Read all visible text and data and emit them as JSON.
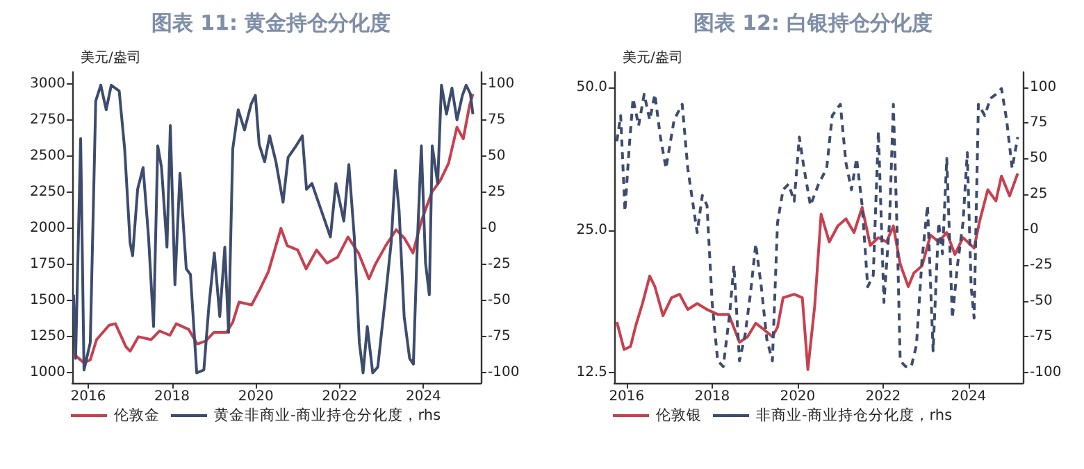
{
  "chart_data": [
    {
      "type": "line",
      "title": "图表 11: 黄金持仓分化度",
      "annotations": [
        "美元/盎司"
      ],
      "xlim": [
        2015.62,
        2025.37
      ],
      "xticks": [
        2016,
        2018,
        2020,
        2022,
        2024
      ],
      "ylim": [
        930,
        3081
      ],
      "yticks": [
        1000,
        1250,
        1500,
        1750,
        2000,
        2250,
        2500,
        2750,
        3000
      ],
      "y2lim": [
        -107,
        108
      ],
      "y2ticks": [
        -100,
        -75,
        -50,
        -25,
        0,
        25,
        50,
        75,
        100
      ],
      "legend": "bottom left",
      "marker": "none",
      "series": [
        {
          "name": "伦敦金",
          "color": "#c8404f",
          "x": [
            2015.65,
            2015.9,
            2016.05,
            2016.2,
            2016.5,
            2016.65,
            2016.9,
            2017.0,
            2017.2,
            2017.5,
            2017.7,
            2017.95,
            2018.1,
            2018.4,
            2018.6,
            2018.8,
            2019.0,
            2019.3,
            2019.45,
            2019.6,
            2019.9,
            2020.1,
            2020.3,
            2020.6,
            2020.75,
            2021.0,
            2021.2,
            2021.45,
            2021.7,
            2021.95,
            2022.2,
            2022.45,
            2022.7,
            2022.85,
            2023.1,
            2023.35,
            2023.55,
            2023.75,
            2023.95,
            2024.2,
            2024.4,
            2024.6,
            2024.8,
            2024.95,
            2025.1,
            2025.18
          ],
          "values": [
            1130,
            1070,
            1090,
            1230,
            1330,
            1340,
            1180,
            1150,
            1250,
            1230,
            1290,
            1260,
            1340,
            1300,
            1200,
            1220,
            1280,
            1280,
            1350,
            1490,
            1470,
            1580,
            1700,
            2000,
            1880,
            1850,
            1720,
            1850,
            1760,
            1800,
            1940,
            1830,
            1650,
            1750,
            1880,
            1990,
            1930,
            1830,
            2050,
            2250,
            2330,
            2450,
            2700,
            2620,
            2850,
            2930
          ]
        },
        {
          "name": "黄金非商业-商业持仓分化度，rhs",
          "color": "#3d4c6e",
          "axis": "y2",
          "x": [
            2015.65,
            2015.7,
            2015.82,
            2015.9,
            2016.05,
            2016.18,
            2016.3,
            2016.43,
            2016.55,
            2016.74,
            2016.87,
            2017.0,
            2017.06,
            2017.18,
            2017.31,
            2017.44,
            2017.56,
            2017.66,
            2017.75,
            2017.88,
            2017.96,
            2018.07,
            2018.19,
            2018.34,
            2018.44,
            2018.59,
            2018.76,
            2018.88,
            2019.01,
            2019.14,
            2019.26,
            2019.35,
            2019.45,
            2019.58,
            2019.73,
            2019.89,
            2019.99,
            2020.08,
            2020.21,
            2020.33,
            2020.48,
            2020.65,
            2020.77,
            2020.96,
            2021.11,
            2021.21,
            2021.34,
            2021.47,
            2021.65,
            2021.78,
            2021.91,
            2022.1,
            2022.22,
            2022.35,
            2022.47,
            2022.56,
            2022.66,
            2022.79,
            2022.91,
            2023.1,
            2023.23,
            2023.33,
            2023.42,
            2023.54,
            2023.67,
            2023.76,
            2023.86,
            2023.95,
            2024.05,
            2024.14,
            2024.21,
            2024.34,
            2024.43,
            2024.55,
            2024.68,
            2024.8,
            2024.93,
            2025.02,
            2025.12,
            2025.18
          ],
          "values": [
            -46,
            -90,
            62,
            -98,
            -79,
            88,
            99,
            82,
            99,
            95,
            55,
            -10,
            -19,
            27,
            42,
            -6,
            -68,
            57,
            42,
            -13,
            71,
            -39,
            38,
            -28,
            -32,
            -100,
            -98,
            -54,
            -17,
            -61,
            -13,
            -72,
            55,
            82,
            68,
            86,
            92,
            58,
            46,
            64,
            46,
            18,
            49,
            57,
            64,
            27,
            31,
            20,
            5,
            -6,
            31,
            5,
            44,
            -6,
            -79,
            -100,
            -68,
            -100,
            -96,
            -46,
            -10,
            40,
            12,
            -61,
            -90,
            -94,
            -6,
            57,
            -24,
            -46,
            57,
            31,
            99,
            79,
            97,
            75,
            92,
            99,
            93,
            79
          ]
        }
      ]
    },
    {
      "type": "line",
      "title": "图表 12: 白银持仓分化度",
      "annotations": [
        "美元/盎司"
      ],
      "log": "y",
      "xlim": [
        2015.71,
        2025.27
      ],
      "xticks": [
        2016,
        2018,
        2020,
        2022,
        2024
      ],
      "ylim": [
        11.9,
        53.8
      ],
      "yticks": [
        {
          "value": 12.5,
          "label": "12.5"
        },
        {
          "value": 25,
          "label": "25.0"
        },
        {
          "value": 50,
          "label": "50.0"
        }
      ],
      "y2lim": [
        -107.5,
        110.5
      ],
      "y2ticks": [
        -100,
        -75,
        -50,
        -25,
        0,
        25,
        50,
        75,
        100
      ],
      "legend": "bottom left",
      "marker": "none",
      "series": [
        {
          "name": "伦敦银",
          "color": "#c8404f",
          "x": [
            2015.77,
            2015.94,
            2016.09,
            2016.22,
            2016.37,
            2016.54,
            2016.66,
            2016.85,
            2017.05,
            2017.24,
            2017.43,
            2017.65,
            2017.88,
            2018.13,
            2018.39,
            2018.64,
            2018.83,
            2019.02,
            2019.22,
            2019.41,
            2019.53,
            2019.66,
            2019.92,
            2020.11,
            2020.24,
            2020.4,
            2020.55,
            2020.74,
            2020.94,
            2021.13,
            2021.32,
            2021.51,
            2021.7,
            2021.89,
            2022.08,
            2022.24,
            2022.4,
            2022.59,
            2022.72,
            2022.91,
            2023.11,
            2023.3,
            2023.49,
            2023.68,
            2023.87,
            2024.13,
            2024.25,
            2024.45,
            2024.64,
            2024.77,
            2024.96,
            2025.15
          ],
          "values": [
            16.0,
            14.0,
            14.2,
            15.8,
            17.5,
            20.0,
            19.0,
            16.5,
            18.0,
            18.3,
            17.0,
            17.5,
            17.0,
            16.6,
            16.6,
            14.5,
            14.9,
            15.9,
            15.4,
            14.9,
            15.6,
            18.0,
            18.3,
            18.0,
            12.7,
            17.3,
            27.0,
            23.6,
            25.5,
            26.4,
            24.7,
            27.9,
            23.2,
            24.1,
            23.6,
            25.5,
            21.2,
            19.0,
            20.3,
            21.0,
            24.4,
            23.6,
            24.7,
            22.2,
            24.1,
            22.9,
            25.9,
            30.4,
            28.8,
            32.5,
            29.5,
            32.9
          ]
        },
        {
          "name": "非商业-商业持仓分化度，rhs",
          "color": "#3d4c6e",
          "axis": "y2",
          "line_style": "dashed",
          "x": [
            2015.77,
            2015.86,
            2015.96,
            2016.06,
            2016.15,
            2016.28,
            2016.41,
            2016.54,
            2016.66,
            2016.79,
            2016.92,
            2017.11,
            2017.3,
            2017.43,
            2017.65,
            2017.77,
            2017.88,
            2018.0,
            2018.13,
            2018.26,
            2018.41,
            2018.51,
            2018.64,
            2018.77,
            2018.9,
            2019.02,
            2019.15,
            2019.28,
            2019.41,
            2019.53,
            2019.66,
            2019.79,
            2019.92,
            2020.04,
            2020.15,
            2020.3,
            2020.49,
            2020.68,
            2020.81,
            2021.0,
            2021.13,
            2021.26,
            2021.38,
            2021.51,
            2021.64,
            2021.77,
            2021.89,
            2022.02,
            2022.15,
            2022.24,
            2022.34,
            2022.4,
            2022.53,
            2022.66,
            2022.78,
            2022.91,
            2023.04,
            2023.17,
            2023.3,
            2023.39,
            2023.49,
            2023.62,
            2023.74,
            2023.87,
            2023.97,
            2024.06,
            2024.13,
            2024.23,
            2024.38,
            2024.51,
            2024.64,
            2024.77,
            2024.89,
            2025.02,
            2025.15
          ],
          "values": [
            62,
            80,
            13,
            58,
            92,
            73,
            95,
            77,
            95,
            65,
            43,
            77,
            88,
            43,
            -2,
            24,
            17,
            -51,
            -92,
            -96,
            -59,
            -25,
            -92,
            -74,
            -44,
            -10,
            -40,
            -77,
            -92,
            5,
            28,
            32,
            20,
            65,
            43,
            17,
            32,
            43,
            80,
            88,
            47,
            28,
            50,
            17,
            -40,
            -32,
            69,
            -51,
            5,
            88,
            -14,
            -92,
            -96,
            -96,
            -81,
            -21,
            17,
            -85,
            5,
            -17,
            50,
            -62,
            -25,
            5,
            54,
            -40,
            -62,
            88,
            80,
            92,
            95,
            99,
            77,
            43,
            65
          ]
        }
      ]
    }
  ]
}
